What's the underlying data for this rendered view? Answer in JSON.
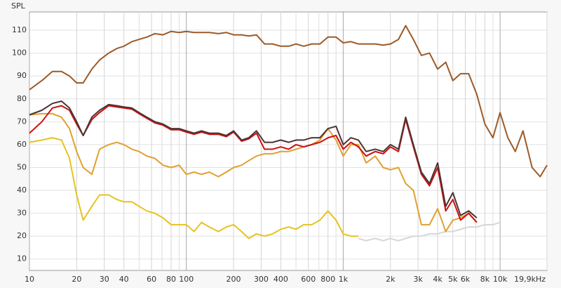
{
  "chart_data": {
    "type": "line",
    "ylabel": "SPL",
    "log_x": true,
    "grid": true,
    "xlim": [
      10,
      19900
    ],
    "ylim": [
      5,
      118
    ],
    "xticks": [
      10,
      20,
      30,
      40,
      60,
      80,
      100,
      200,
      300,
      400,
      600,
      800,
      {
        "value": 1000,
        "label": "1k"
      },
      {
        "value": 2000,
        "label": "2k"
      },
      {
        "value": 3000,
        "label": "3k"
      },
      {
        "value": 4000,
        "label": "4k"
      },
      {
        "value": 5000,
        "label": "5k"
      },
      {
        "value": 6000,
        "label": "6k"
      },
      {
        "value": 8000,
        "label": "8k"
      },
      {
        "value": 10000,
        "label": "10k"
      },
      {
        "value": 19900,
        "label": "19,9kHz"
      }
    ],
    "xminor": [
      50,
      70,
      90,
      500,
      700,
      900,
      7000,
      9000
    ],
    "yticks": [
      10,
      20,
      30,
      40,
      50,
      60,
      70,
      80,
      90,
      100,
      110
    ],
    "x": [
      10,
      12,
      14,
      16,
      18,
      20,
      22,
      25,
      28,
      32,
      36,
      40,
      45,
      50,
      56,
      63,
      71,
      80,
      90,
      100,
      112,
      125,
      140,
      160,
      180,
      200,
      225,
      250,
      280,
      315,
      355,
      400,
      450,
      500,
      560,
      630,
      710,
      800,
      900,
      1000,
      1120,
      1250,
      1400,
      1600,
      1800,
      2000,
      2250,
      2500,
      2800,
      3150,
      3550,
      4000,
      4500,
      5000,
      5600,
      6300,
      7100,
      8000,
      9000,
      10000,
      11200,
      12500,
      14000,
      16000,
      18000,
      19900
    ],
    "series": [
      {
        "color": "#d6d6d6",
        "values": [
          null,
          null,
          null,
          null,
          null,
          null,
          null,
          null,
          null,
          null,
          null,
          null,
          null,
          null,
          null,
          null,
          null,
          null,
          null,
          null,
          null,
          null,
          null,
          null,
          null,
          null,
          null,
          null,
          null,
          null,
          null,
          null,
          null,
          null,
          null,
          null,
          null,
          null,
          null,
          null,
          null,
          19,
          18,
          19,
          18,
          19,
          18,
          19,
          20,
          20,
          21,
          21,
          22,
          22,
          23,
          24,
          24,
          25,
          25,
          26,
          null,
          null,
          null,
          null,
          null,
          null
        ]
      },
      {
        "color": "#e6c31e",
        "values": [
          61,
          62,
          63,
          62,
          54,
          38,
          27,
          33,
          38,
          38,
          36,
          35,
          35,
          33,
          31,
          30,
          28,
          25,
          25,
          25,
          22,
          26,
          24,
          22,
          24,
          25,
          22,
          19,
          21,
          20,
          21,
          23,
          24,
          23,
          25,
          25,
          27,
          31,
          27,
          21,
          20,
          20,
          null,
          null,
          null,
          null,
          null,
          null,
          null,
          null,
          null,
          null,
          null,
          null,
          null,
          null,
          null,
          null,
          null,
          null,
          null,
          null,
          null,
          null,
          null,
          null
        ]
      },
      {
        "color": "#e0a030",
        "values": [
          73,
          73.5,
          73.5,
          72,
          67,
          57,
          50,
          47,
          58,
          60,
          61,
          60,
          58,
          57,
          55,
          54,
          51,
          50,
          51,
          47,
          48,
          47,
          48,
          46,
          48,
          50,
          51,
          53,
          55,
          56,
          56,
          57,
          57,
          58,
          59,
          60,
          62,
          67,
          62,
          55,
          60,
          60,
          52,
          55,
          50,
          49,
          50,
          43,
          40,
          25,
          25,
          32,
          22,
          27,
          28,
          30,
          26,
          null,
          null,
          null,
          null,
          null,
          null,
          null,
          null,
          null
        ]
      },
      {
        "color": "#cc1010",
        "values": [
          65,
          70,
          76,
          77,
          75,
          69,
          64,
          71,
          74,
          77,
          76.5,
          76,
          75.5,
          73.5,
          71.5,
          69.5,
          68.5,
          66.5,
          66.5,
          65.5,
          64.5,
          65.5,
          64.5,
          64.5,
          63.5,
          65.5,
          61.5,
          62.5,
          65,
          58,
          58,
          59,
          58,
          60,
          59,
          60,
          61,
          63,
          64,
          58,
          61,
          59,
          55,
          57,
          56,
          59,
          57,
          71,
          59,
          47,
          42,
          50,
          31,
          36,
          27,
          30,
          26,
          null,
          null,
          null,
          null,
          null,
          null,
          null,
          null,
          null
        ]
      },
      {
        "color": "#4b3434",
        "values": [
          73,
          75,
          78,
          79,
          76,
          70,
          64,
          72,
          75,
          77.5,
          77,
          76.5,
          76,
          74,
          72,
          70,
          69,
          67,
          67,
          66,
          65,
          66,
          65,
          65,
          64,
          66,
          62,
          63,
          66,
          61,
          61,
          62,
          61,
          62,
          62,
          63,
          63,
          67,
          68,
          60,
          63,
          62,
          57,
          58,
          57,
          60,
          58,
          72,
          60,
          48,
          43,
          52,
          33,
          39,
          29,
          31,
          28,
          null,
          null,
          null,
          null,
          null,
          null,
          null,
          null,
          null
        ]
      },
      {
        "color": "#9c5a28",
        "values": [
          84,
          88,
          92,
          92,
          90,
          87,
          87,
          93,
          97,
          100,
          102,
          103,
          105,
          106,
          107,
          108.5,
          108,
          109.5,
          109,
          109.5,
          109,
          109,
          109,
          108.5,
          109,
          108,
          108,
          107.5,
          108,
          104,
          104,
          103,
          103,
          104,
          103,
          104,
          104,
          107,
          107,
          104.5,
          105,
          104,
          104,
          104,
          103.5,
          104,
          106,
          112,
          106,
          99,
          100,
          93,
          96,
          88,
          91,
          91,
          82,
          69,
          63,
          74,
          63,
          57,
          66,
          50,
          46,
          51
        ]
      }
    ]
  }
}
